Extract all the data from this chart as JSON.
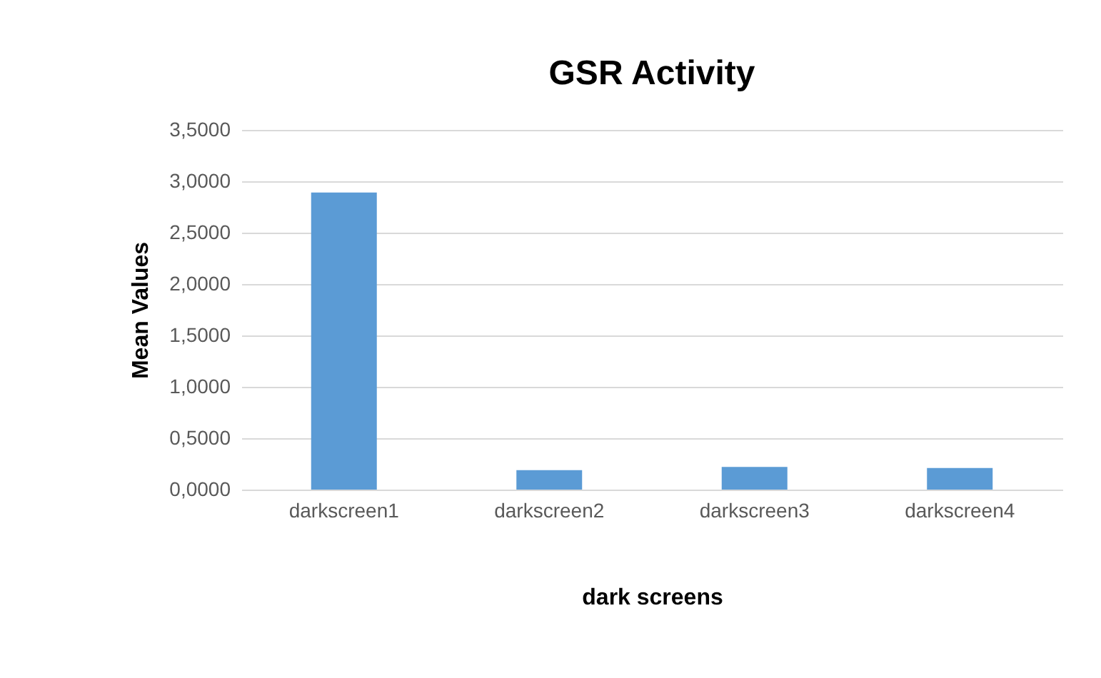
{
  "chart_data": {
    "type": "bar",
    "title": "GSR Activity",
    "xlabel": "dark screens",
    "ylabel": "Mean Values",
    "categories": [
      "darkscreen1",
      "darkscreen2",
      "darkscreen3",
      "darkscreen4"
    ],
    "values": [
      2.89,
      0.19,
      0.22,
      0.21
    ],
    "color": "#5b9bd5",
    "ylim": [
      0,
      3.5
    ],
    "yticks": [
      {
        "value": 0,
        "label": "0,0000"
      },
      {
        "value": 0.5,
        "label": "0,5000"
      },
      {
        "value": 1,
        "label": "1,0000"
      },
      {
        "value": 1.5,
        "label": "1,5000"
      },
      {
        "value": 2,
        "label": "2,0000"
      },
      {
        "value": 2.5,
        "label": "2,5000"
      },
      {
        "value": 3,
        "label": "3,0000"
      },
      {
        "value": 3.5,
        "label": "3,5000"
      }
    ],
    "grid": "y"
  }
}
